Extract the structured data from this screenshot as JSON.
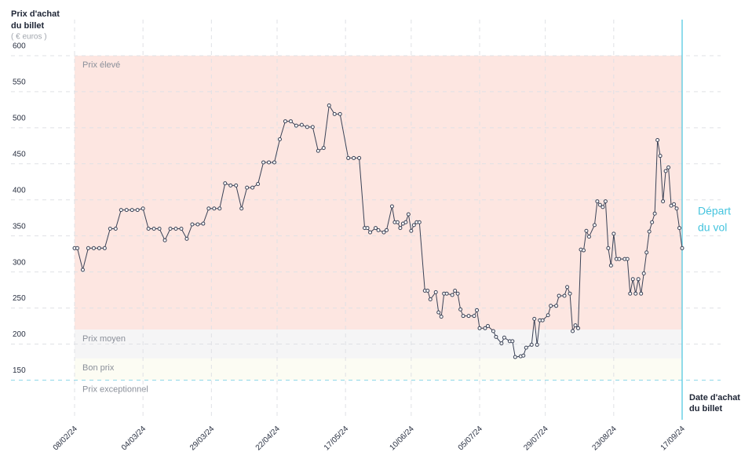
{
  "chart_data": {
    "type": "line",
    "y_title": [
      "Prix d'achat",
      "du billet"
    ],
    "y_unit": "( € euros )",
    "x_title": [
      "Date d'achat",
      "du billet"
    ],
    "departure": {
      "date": "17/09/24",
      "label": [
        "Départ",
        "du vol"
      ],
      "color": "#45c4de"
    },
    "bands": [
      {
        "name": "Prix élevé",
        "range": [
          220,
          600
        ],
        "color": "#fde6e1"
      },
      {
        "name": "Prix moyen",
        "range": [
          180,
          220
        ],
        "color": "#f5f5f6"
      },
      {
        "name": "Bon prix",
        "range": [
          150,
          180
        ],
        "color": "#fcfcf3"
      },
      {
        "name": "Prix exceptionnel",
        "range": [
          95,
          150
        ],
        "color": "#ffffff"
      }
    ],
    "ylim": [
      95,
      650
    ],
    "yticks": [
      150,
      200,
      250,
      300,
      350,
      400,
      450,
      500,
      550,
      600
    ],
    "xlim": [
      "08/02/24",
      "17/09/24"
    ],
    "xticks": [
      "08/02/24",
      "04/03/24",
      "29/03/24",
      "22/04/24",
      "17/05/24",
      "10/06/24",
      "05/07/24",
      "29/07/24",
      "23/08/24",
      "17/09/24"
    ],
    "grid": true,
    "series": [
      {
        "name": "Prix",
        "color": "#3a4256",
        "x": [
          "08/02/24",
          "09/02/24",
          "11/02/24",
          "13/02/24",
          "15/02/24",
          "17/02/24",
          "19/02/24",
          "21/02/24",
          "23/02/24",
          "25/02/24",
          "27/02/24",
          "29/02/24",
          "02/03/24",
          "04/03/24",
          "06/03/24",
          "08/03/24",
          "10/03/24",
          "12/03/24",
          "14/03/24",
          "16/03/24",
          "18/03/24",
          "20/03/24",
          "22/03/24",
          "24/03/24",
          "26/03/24",
          "28/03/24",
          "30/03/24",
          "01/04/24",
          "03/04/24",
          "05/04/24",
          "07/04/24",
          "09/04/24",
          "11/04/24",
          "13/04/24",
          "15/04/24",
          "17/04/24",
          "19/04/24",
          "21/04/24",
          "23/04/24",
          "25/04/24",
          "27/04/24",
          "29/04/24",
          "01/05/24",
          "03/05/24",
          "05/05/24",
          "07/05/24",
          "09/05/24",
          "11/05/24",
          "13/05/24",
          "15/05/24",
          "18/05/24",
          "20/05/24",
          "22/05/24",
          "24/05/24",
          "25/05/24",
          "26/05/24",
          "28/05/24",
          "29/05/24",
          "31/05/24",
          "01/06/24",
          "03/06/24",
          "04/06/24",
          "05/06/24",
          "06/06/24",
          "07/06/24",
          "08/06/24",
          "09/06/24",
          "10/06/24",
          "11/06/24",
          "12/06/24",
          "13/06/24",
          "15/06/24",
          "16/06/24",
          "17/06/24",
          "19/06/24",
          "20/06/24",
          "21/06/24",
          "22/06/24",
          "23/06/24",
          "25/06/24",
          "26/06/24",
          "27/06/24",
          "28/06/24",
          "29/06/24",
          "01/07/24",
          "03/07/24",
          "04/07/24",
          "05/07/24",
          "07/07/24",
          "08/07/24",
          "10/07/24",
          "11/07/24",
          "13/07/24",
          "14/07/24",
          "16/07/24",
          "17/07/24",
          "18/07/24",
          "20/07/24",
          "21/07/24",
          "22/07/24",
          "24/07/24",
          "25/07/24",
          "26/07/24",
          "27/07/24",
          "28/07/24",
          "30/07/24",
          "31/07/24",
          "02/08/24",
          "03/08/24",
          "05/08/24",
          "06/08/24",
          "07/08/24",
          "08/08/24",
          "09/08/24",
          "10/08/24",
          "11/08/24",
          "12/08/24",
          "13/08/24",
          "14/08/24",
          "16/08/24",
          "17/08/24",
          "18/08/24",
          "19/08/24",
          "20/08/24",
          "21/08/24",
          "22/08/24",
          "23/08/24",
          "24/08/24",
          "25/08/24",
          "27/08/24",
          "28/08/24",
          "29/08/24",
          "30/08/24",
          "31/08/24",
          "01/09/24",
          "02/09/24",
          "03/09/24",
          "04/09/24",
          "05/09/24",
          "06/09/24",
          "07/09/24",
          "08/09/24",
          "09/09/24",
          "10/09/24",
          "11/09/24",
          "12/09/24",
          "13/09/24",
          "14/09/24",
          "15/09/24",
          "16/09/24",
          "17/09/24"
        ],
        "values": [
          333,
          333,
          303,
          333,
          333,
          333,
          333,
          360,
          360,
          386,
          386,
          386,
          386,
          388,
          360,
          360,
          360,
          344,
          360,
          360,
          360,
          346,
          366,
          366,
          367,
          388,
          388,
          388,
          423,
          420,
          420,
          388,
          417,
          417,
          422,
          452,
          452,
          452,
          484,
          509,
          509,
          503,
          504,
          501,
          501,
          468,
          472,
          531,
          519,
          519,
          458,
          458,
          458,
          361,
          361,
          355,
          361,
          358,
          355,
          358,
          391,
          369,
          369,
          361,
          367,
          369,
          380,
          357,
          365,
          369,
          369,
          274,
          274,
          262,
          272,
          244,
          238,
          270,
          270,
          268,
          274,
          270,
          248,
          239,
          239,
          239,
          247,
          222,
          222,
          225,
          218,
          210,
          201,
          209,
          204,
          204,
          182,
          183,
          184,
          195,
          199,
          235,
          199,
          233,
          233,
          240,
          253,
          253,
          267,
          267,
          279,
          270,
          218,
          226,
          222,
          331,
          330,
          357,
          349,
          365,
          398,
          393,
          390,
          398,
          333,
          309,
          353,
          318,
          318,
          318,
          318,
          270,
          290,
          270,
          290,
          270,
          298,
          327,
          356,
          369,
          381,
          483,
          461,
          398,
          440,
          445,
          392,
          394,
          388,
          361,
          333
        ]
      }
    ]
  }
}
